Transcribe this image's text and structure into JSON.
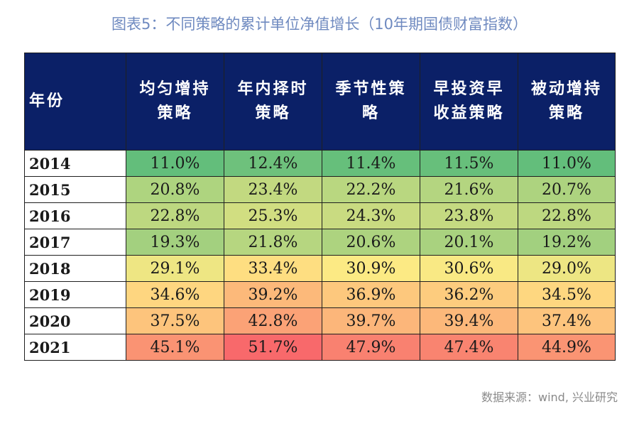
{
  "title": "图表5：不同策略的累计单位净值增长（10年期国债财富指数）",
  "source": "数据来源：wind, 兴业研究",
  "table": {
    "headers": [
      "年份",
      "均匀增持策略",
      "年内择时策略",
      "季节性策略",
      "早投资早收益策略",
      "被动增持策略"
    ],
    "rows": [
      {
        "year": "2014",
        "values": [
          "11.0%",
          "12.4%",
          "11.4%",
          "11.5%",
          "11.0%"
        ]
      },
      {
        "year": "2015",
        "values": [
          "20.8%",
          "23.4%",
          "22.2%",
          "21.6%",
          "20.7%"
        ]
      },
      {
        "year": "2016",
        "values": [
          "22.8%",
          "25.3%",
          "24.3%",
          "23.8%",
          "22.8%"
        ]
      },
      {
        "year": "2017",
        "values": [
          "19.3%",
          "21.8%",
          "20.6%",
          "20.1%",
          "19.2%"
        ]
      },
      {
        "year": "2018",
        "values": [
          "29.1%",
          "33.4%",
          "30.9%",
          "30.6%",
          "29.0%"
        ]
      },
      {
        "year": "2019",
        "values": [
          "34.6%",
          "39.2%",
          "36.9%",
          "36.2%",
          "34.5%"
        ]
      },
      {
        "year": "2020",
        "values": [
          "37.5%",
          "42.8%",
          "39.7%",
          "39.4%",
          "37.4%"
        ]
      },
      {
        "year": "2021",
        "values": [
          "45.1%",
          "51.7%",
          "47.9%",
          "47.4%",
          "44.9%"
        ]
      }
    ]
  },
  "colors": {
    "header_bg": "#0b2067",
    "title": "#6f8ac0",
    "scale_low": "#63be7b",
    "scale_mid": "#ffeb84",
    "scale_high": "#f8696b"
  }
}
